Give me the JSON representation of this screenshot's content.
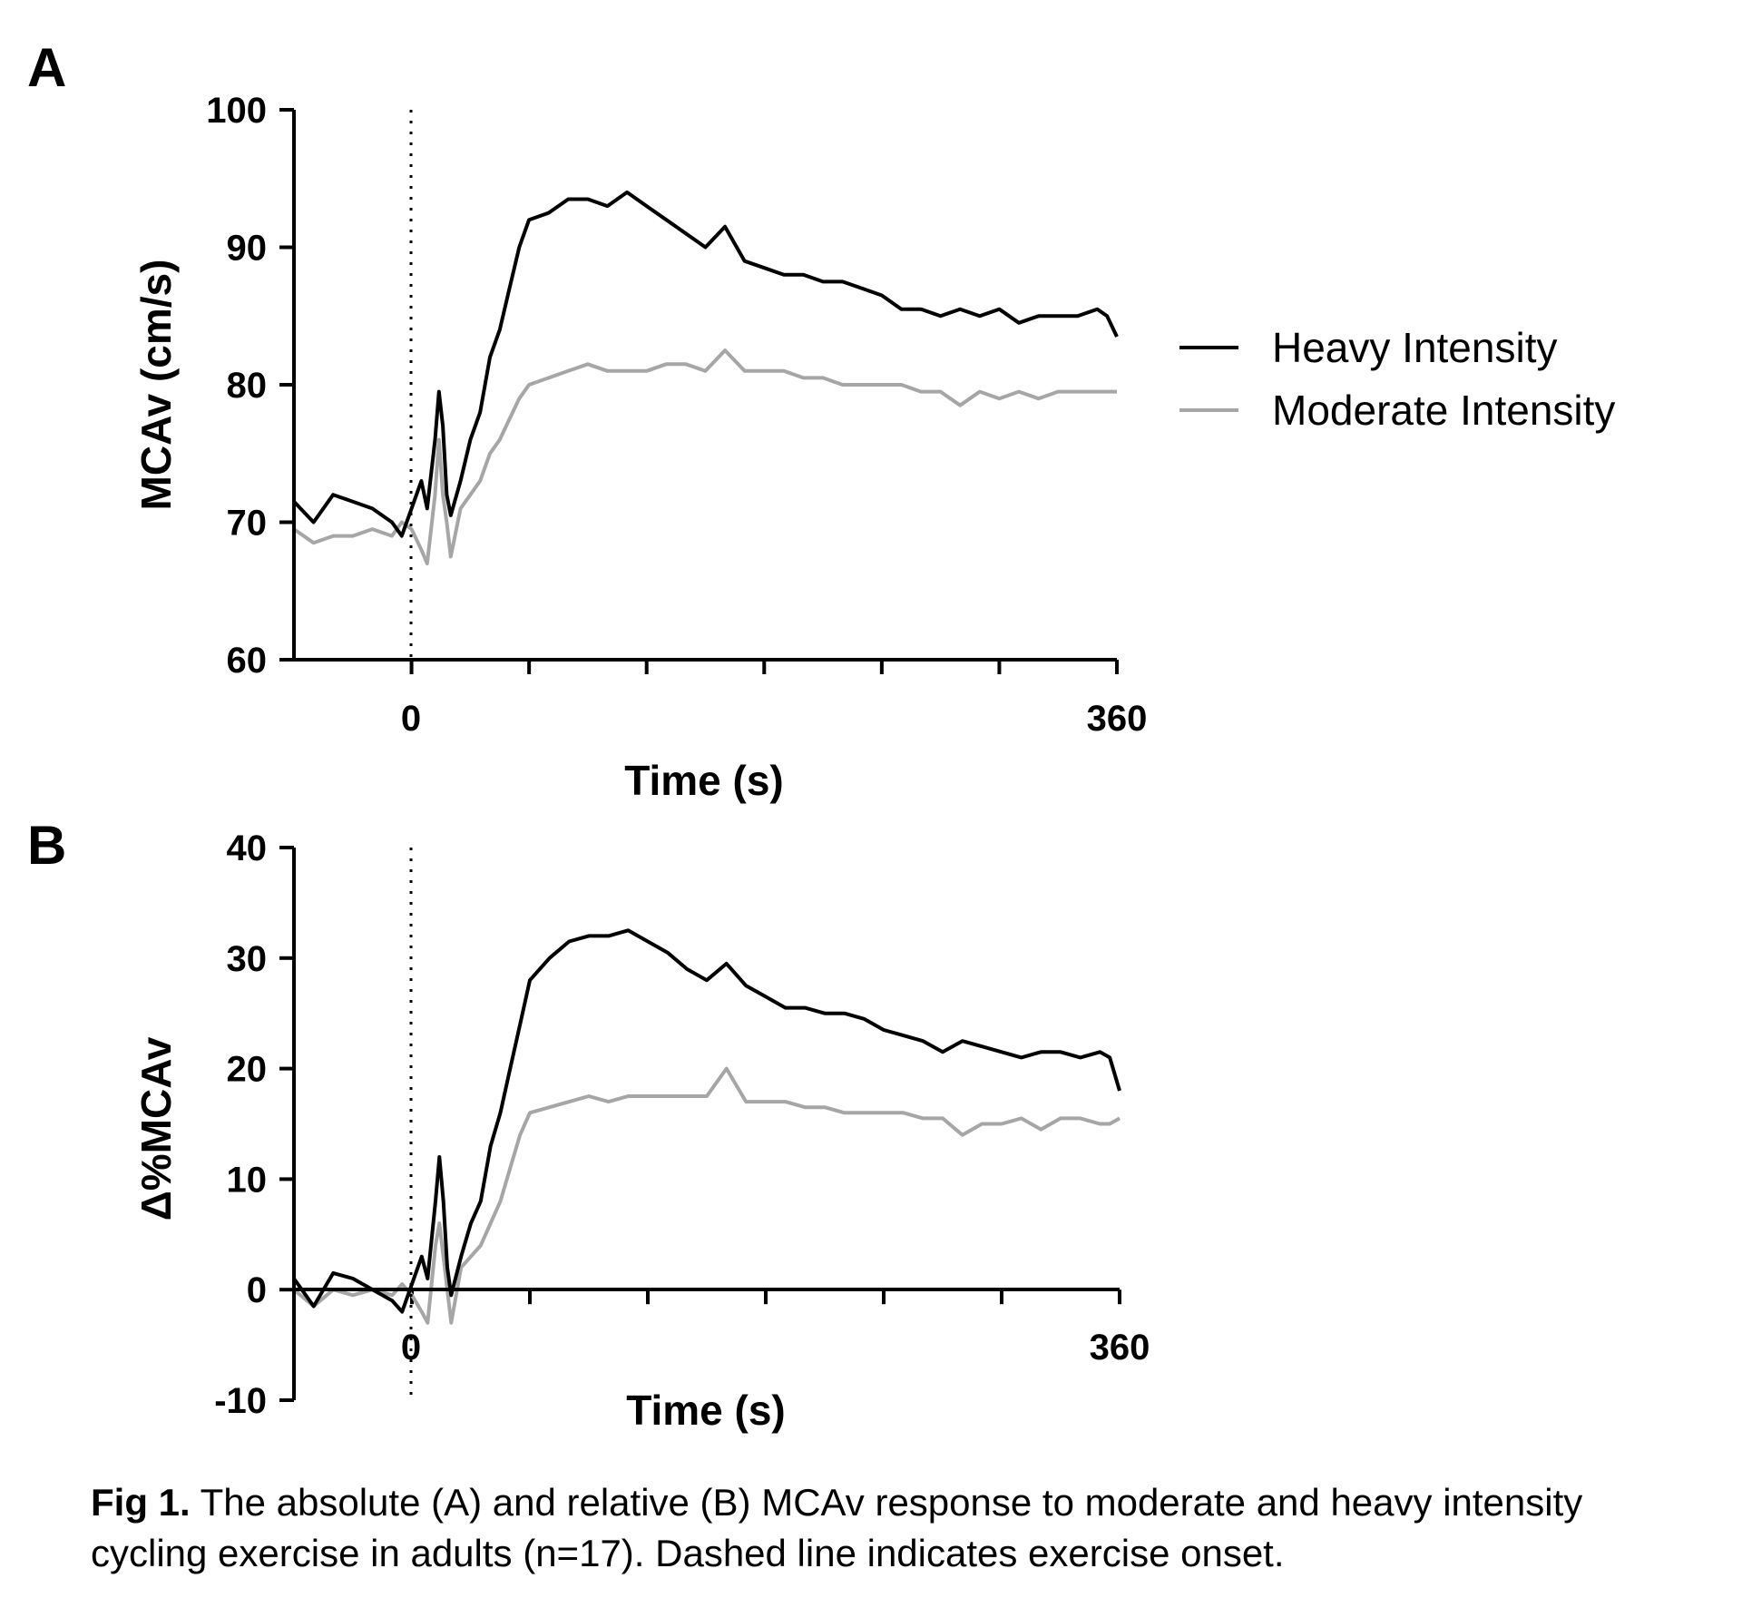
{
  "chart_data": [
    {
      "type": "line",
      "panel_label": "A",
      "xlabel": "Time (s)",
      "ylabel": "MCAv (cm/s)",
      "xlim": [
        -60,
        360
      ],
      "ylim": [
        60,
        100
      ],
      "x_tick_labels": [
        "0",
        "360"
      ],
      "y_ticks": [
        60,
        70,
        80,
        90,
        100
      ],
      "y_tick_labels": [
        "60",
        "70",
        "80",
        "90",
        "100"
      ],
      "onset_line_x": 0,
      "legend_placement": "right",
      "series": [
        {
          "name": "Heavy Intensity",
          "color": "#000000",
          "points": [
            [
              -60,
              71.5
            ],
            [
              -50,
              70
            ],
            [
              -40,
              72
            ],
            [
              -30,
              71.5
            ],
            [
              -20,
              71
            ],
            [
              -10,
              70
            ],
            [
              -5,
              69
            ],
            [
              0,
              71
            ],
            [
              5,
              73
            ],
            [
              8,
              71
            ],
            [
              12,
              76
            ],
            [
              14,
              79.5
            ],
            [
              16,
              77
            ],
            [
              18,
              72
            ],
            [
              20,
              70.5
            ],
            [
              25,
              73
            ],
            [
              30,
              76
            ],
            [
              35,
              78
            ],
            [
              40,
              82
            ],
            [
              45,
              84
            ],
            [
              50,
              87
            ],
            [
              55,
              90
            ],
            [
              60,
              92
            ],
            [
              70,
              92.5
            ],
            [
              80,
              93.5
            ],
            [
              90,
              93.5
            ],
            [
              100,
              93
            ],
            [
              110,
              94
            ],
            [
              120,
              93
            ],
            [
              130,
              92
            ],
            [
              140,
              91
            ],
            [
              150,
              90
            ],
            [
              160,
              91.5
            ],
            [
              170,
              89
            ],
            [
              180,
              88.5
            ],
            [
              190,
              88
            ],
            [
              200,
              88
            ],
            [
              210,
              87.5
            ],
            [
              220,
              87.5
            ],
            [
              230,
              87
            ],
            [
              240,
              86.5
            ],
            [
              250,
              85.5
            ],
            [
              260,
              85.5
            ],
            [
              270,
              85
            ],
            [
              280,
              85.5
            ],
            [
              290,
              85
            ],
            [
              300,
              85.5
            ],
            [
              310,
              84.5
            ],
            [
              320,
              85
            ],
            [
              330,
              85
            ],
            [
              340,
              85
            ],
            [
              350,
              85.5
            ],
            [
              355,
              85
            ],
            [
              360,
              83.5
            ]
          ]
        },
        {
          "name": "Moderate Intensity",
          "color": "#a6a6a6",
          "points": [
            [
              -60,
              69.5
            ],
            [
              -50,
              68.5
            ],
            [
              -40,
              69
            ],
            [
              -30,
              69
            ],
            [
              -20,
              69.5
            ],
            [
              -10,
              69
            ],
            [
              -5,
              70
            ],
            [
              0,
              69.5
            ],
            [
              5,
              68
            ],
            [
              8,
              67
            ],
            [
              12,
              72
            ],
            [
              14,
              76
            ],
            [
              16,
              72
            ],
            [
              18,
              70
            ],
            [
              20,
              67.5
            ],
            [
              25,
              71
            ],
            [
              30,
              72
            ],
            [
              35,
              73
            ],
            [
              40,
              75
            ],
            [
              45,
              76
            ],
            [
              50,
              77.5
            ],
            [
              55,
              79
            ],
            [
              60,
              80
            ],
            [
              70,
              80.5
            ],
            [
              80,
              81
            ],
            [
              90,
              81.5
            ],
            [
              100,
              81
            ],
            [
              110,
              81
            ],
            [
              120,
              81
            ],
            [
              130,
              81.5
            ],
            [
              140,
              81.5
            ],
            [
              150,
              81
            ],
            [
              160,
              82.5
            ],
            [
              170,
              81
            ],
            [
              180,
              81
            ],
            [
              190,
              81
            ],
            [
              200,
              80.5
            ],
            [
              210,
              80.5
            ],
            [
              220,
              80
            ],
            [
              230,
              80
            ],
            [
              240,
              80
            ],
            [
              250,
              80
            ],
            [
              260,
              79.5
            ],
            [
              270,
              79.5
            ],
            [
              280,
              78.5
            ],
            [
              290,
              79.5
            ],
            [
              300,
              79
            ],
            [
              310,
              79.5
            ],
            [
              320,
              79
            ],
            [
              330,
              79.5
            ],
            [
              340,
              79.5
            ],
            [
              350,
              79.5
            ],
            [
              355,
              79.5
            ],
            [
              360,
              79.5
            ]
          ]
        }
      ]
    },
    {
      "type": "line",
      "panel_label": "B",
      "xlabel": "Time (s)",
      "ylabel": "Δ%MCAv",
      "xlim": [
        -60,
        360
      ],
      "ylim": [
        -10,
        40
      ],
      "x_tick_labels": [
        "0",
        "360"
      ],
      "y_ticks": [
        -10,
        0,
        10,
        20,
        30,
        40
      ],
      "y_tick_labels": [
        "-10",
        "0",
        "10",
        "20",
        "30",
        "40"
      ],
      "onset_line_x": 0,
      "series": [
        {
          "name": "Heavy Intensity",
          "color": "#000000",
          "points": [
            [
              -60,
              1
            ],
            [
              -50,
              -1.5
            ],
            [
              -40,
              1.5
            ],
            [
              -30,
              1
            ],
            [
              -20,
              0
            ],
            [
              -10,
              -1
            ],
            [
              -5,
              -2
            ],
            [
              0,
              0.5
            ],
            [
              5,
              3
            ],
            [
              8,
              1
            ],
            [
              12,
              8
            ],
            [
              14,
              12
            ],
            [
              16,
              8
            ],
            [
              18,
              2
            ],
            [
              20,
              -0.5
            ],
            [
              25,
              3
            ],
            [
              30,
              6
            ],
            [
              35,
              8
            ],
            [
              40,
              13
            ],
            [
              45,
              16
            ],
            [
              50,
              20
            ],
            [
              55,
              24
            ],
            [
              60,
              28
            ],
            [
              70,
              30
            ],
            [
              80,
              31.5
            ],
            [
              90,
              32
            ],
            [
              100,
              32
            ],
            [
              110,
              32.5
            ],
            [
              120,
              31.5
            ],
            [
              130,
              30.5
            ],
            [
              140,
              29
            ],
            [
              150,
              28
            ],
            [
              160,
              29.5
            ],
            [
              170,
              27.5
            ],
            [
              180,
              26.5
            ],
            [
              190,
              25.5
            ],
            [
              200,
              25.5
            ],
            [
              210,
              25
            ],
            [
              220,
              25
            ],
            [
              230,
              24.5
            ],
            [
              240,
              23.5
            ],
            [
              250,
              23
            ],
            [
              260,
              22.5
            ],
            [
              270,
              21.5
            ],
            [
              280,
              22.5
            ],
            [
              290,
              22
            ],
            [
              300,
              21.5
            ],
            [
              310,
              21
            ],
            [
              320,
              21.5
            ],
            [
              330,
              21.5
            ],
            [
              340,
              21
            ],
            [
              350,
              21.5
            ],
            [
              355,
              21
            ],
            [
              360,
              18
            ]
          ]
        },
        {
          "name": "Moderate Intensity",
          "color": "#a6a6a6",
          "points": [
            [
              -60,
              0
            ],
            [
              -50,
              -1.5
            ],
            [
              -40,
              0
            ],
            [
              -30,
              -0.5
            ],
            [
              -20,
              0
            ],
            [
              -10,
              -0.5
            ],
            [
              -5,
              0.5
            ],
            [
              0,
              -0.5
            ],
            [
              5,
              -2
            ],
            [
              8,
              -3
            ],
            [
              12,
              4
            ],
            [
              14,
              6
            ],
            [
              16,
              3
            ],
            [
              18,
              0
            ],
            [
              20,
              -3
            ],
            [
              25,
              2
            ],
            [
              30,
              3
            ],
            [
              35,
              4
            ],
            [
              40,
              6
            ],
            [
              45,
              8
            ],
            [
              50,
              11
            ],
            [
              55,
              14
            ],
            [
              60,
              16
            ],
            [
              70,
              16.5
            ],
            [
              80,
              17
            ],
            [
              90,
              17.5
            ],
            [
              100,
              17
            ],
            [
              110,
              17.5
            ],
            [
              120,
              17.5
            ],
            [
              130,
              17.5
            ],
            [
              140,
              17.5
            ],
            [
              150,
              17.5
            ],
            [
              160,
              20
            ],
            [
              170,
              17
            ],
            [
              180,
              17
            ],
            [
              190,
              17
            ],
            [
              200,
              16.5
            ],
            [
              210,
              16.5
            ],
            [
              220,
              16
            ],
            [
              230,
              16
            ],
            [
              240,
              16
            ],
            [
              250,
              16
            ],
            [
              260,
              15.5
            ],
            [
              270,
              15.5
            ],
            [
              280,
              14
            ],
            [
              290,
              15
            ],
            [
              300,
              15
            ],
            [
              310,
              15.5
            ],
            [
              320,
              14.5
            ],
            [
              330,
              15.5
            ],
            [
              340,
              15.5
            ],
            [
              350,
              15
            ],
            [
              355,
              15
            ],
            [
              360,
              15.5
            ]
          ]
        }
      ]
    }
  ],
  "legend": {
    "heavy_label": "Heavy Intensity",
    "moderate_label": "Moderate Intensity"
  },
  "caption": {
    "label": "Fig 1.",
    "text": " The absolute (A) and relative (B) MCAv response to moderate and heavy intensity cycling exercise in adults (n=17). Dashed line indicates exercise onset."
  }
}
